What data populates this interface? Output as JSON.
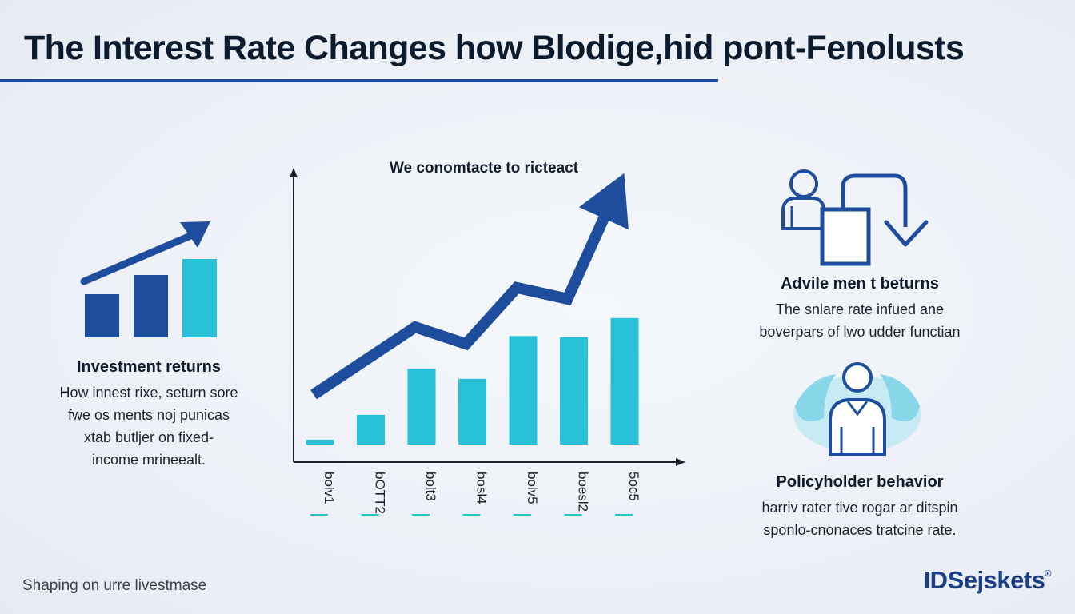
{
  "header": {
    "title": "The Interest Rate Changes how Blodige,hid pont-Fenolusts"
  },
  "left_panel": {
    "icon": "rising-bar-chart-icon",
    "heading": "Investment returns",
    "body": "How innest rixe, seturn sore\nfwe os ments noj punicas\nxtab butljer on fixed-\nincome mrineealt."
  },
  "right_panel": {
    "top": {
      "icon": "person-document-return-icon",
      "heading": "Advile men t beturns",
      "body": "The snlare rate infued ane\nboverpars of lwo udder functian"
    },
    "bottom": {
      "icon": "policyholder-icon",
      "heading": "Policyholder behavior",
      "body": "harriv rater tive rogar ar ditspin\nsponlo-cnonaces tratcine rate."
    }
  },
  "footer": {
    "tagline": "Shaping on urre livestmase",
    "logo": "IDSejskets",
    "logo_mark": "®"
  },
  "colors": {
    "primary_blue": "#1f4d9e",
    "bar_cyan": "#29c1d8",
    "icon_cyan": "#2ec4dc"
  },
  "chart_data": {
    "type": "bar",
    "title": "We conomtacte to ricteact",
    "categories": [
      "bolv1",
      "bOTT2",
      "bolt3",
      "bosl4",
      "bolv5",
      "boesl2",
      "5oc5"
    ],
    "values": [
      2,
      4.2,
      8.3,
      7.4,
      11.2,
      11.1,
      12.8
    ],
    "trend": [
      6,
      9,
      12,
      10.5,
      15.5,
      14.5,
      24.5
    ],
    "ylim": [
      0,
      26
    ],
    "grid": false,
    "legend": "none"
  }
}
